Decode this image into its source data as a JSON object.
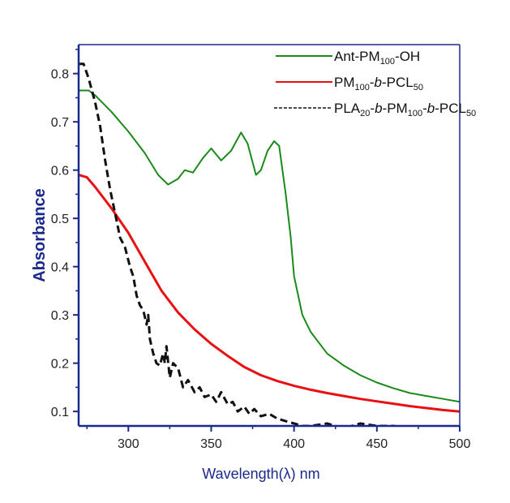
{
  "chart_data": {
    "type": "line",
    "title": "",
    "xlabel": "Wavelength(λ) nm",
    "ylabel": "Absorbance",
    "xlim": [
      270,
      500
    ],
    "ylim": [
      0.07,
      0.86
    ],
    "x_ticks": [
      300,
      350,
      400,
      450,
      500
    ],
    "y_ticks": [
      0.1,
      0.2,
      0.3,
      0.4,
      0.5,
      0.6,
      0.7,
      0.8
    ],
    "x_tick_labels": [
      "300",
      "350",
      "400",
      "450",
      "500"
    ],
    "y_tick_labels": [
      "0.1",
      "0.2",
      "0.3",
      "0.4",
      "0.5",
      "0.6",
      "0.7",
      "0.8"
    ],
    "grid": false,
    "legend_position": "top-right",
    "series": [
      {
        "name": "Ant-PM100-OH",
        "legend_parts": [
          {
            "text": "Ant-PM",
            "sub": false
          },
          {
            "text": "100",
            "sub": true
          },
          {
            "text": "-OH",
            "sub": false
          }
        ],
        "color": "#1a8a1a",
        "style": "solid",
        "x": [
          270,
          276,
          280,
          290,
          300,
          310,
          318,
          324,
          330,
          334,
          339,
          345,
          350,
          356,
          362,
          368,
          372,
          377,
          380,
          384,
          388,
          391,
          395,
          398,
          400,
          405,
          410,
          420,
          430,
          440,
          450,
          460,
          470,
          480,
          490,
          500
        ],
        "y": [
          0.765,
          0.765,
          0.755,
          0.72,
          0.68,
          0.635,
          0.59,
          0.57,
          0.582,
          0.6,
          0.595,
          0.625,
          0.645,
          0.62,
          0.64,
          0.678,
          0.655,
          0.59,
          0.6,
          0.64,
          0.66,
          0.65,
          0.55,
          0.46,
          0.38,
          0.3,
          0.265,
          0.22,
          0.195,
          0.175,
          0.16,
          0.148,
          0.138,
          0.132,
          0.126,
          0.12
        ]
      },
      {
        "name": "PM100-b-PCL50",
        "legend_parts": [
          {
            "text": "PM",
            "sub": false
          },
          {
            "text": "100",
            "sub": true
          },
          {
            "text": "-",
            "sub": false
          },
          {
            "text": "b",
            "sub": false,
            "italic": true
          },
          {
            "text": "-PCL",
            "sub": false
          },
          {
            "text": "50",
            "sub": true
          }
        ],
        "color": "#e81010",
        "style": "solid",
        "x": [
          270,
          275,
          280,
          290,
          300,
          310,
          320,
          330,
          340,
          350,
          360,
          370,
          380,
          390,
          400,
          410,
          420,
          430,
          440,
          450,
          460,
          470,
          480,
          490,
          500
        ],
        "y": [
          0.59,
          0.585,
          0.565,
          0.52,
          0.47,
          0.41,
          0.35,
          0.305,
          0.27,
          0.24,
          0.215,
          0.192,
          0.175,
          0.163,
          0.153,
          0.145,
          0.138,
          0.132,
          0.126,
          0.121,
          0.116,
          0.111,
          0.107,
          0.103,
          0.1
        ]
      },
      {
        "name": "PLA20-b-PM100-b-PCL50",
        "legend_parts": [
          {
            "text": "PLA",
            "sub": false
          },
          {
            "text": "20",
            "sub": true
          },
          {
            "text": "-",
            "sub": false
          },
          {
            "text": "b",
            "sub": false,
            "italic": true
          },
          {
            "text": "-PM",
            "sub": false
          },
          {
            "text": "100",
            "sub": true
          },
          {
            "text": "-",
            "sub": false
          },
          {
            "text": "b",
            "sub": false,
            "italic": true
          },
          {
            "text": "-PCL",
            "sub": false
          },
          {
            "text": "50",
            "sub": true
          }
        ],
        "color": "#111111",
        "style": "dashed",
        "x": [
          270,
          273,
          276,
          280,
          283,
          286,
          289,
          292,
          295,
          298,
          301,
          303,
          305,
          307,
          309,
          311,
          312,
          313,
          315,
          317,
          319,
          321,
          322,
          323,
          325,
          327,
          330,
          333,
          336,
          340,
          343,
          346,
          350,
          353,
          356,
          360,
          363,
          366,
          370,
          373,
          376,
          380,
          385,
          390,
          395,
          400,
          405,
          410,
          420,
          430,
          440,
          450,
          460,
          470,
          475,
          480,
          490,
          500
        ],
        "y": [
          0.82,
          0.82,
          0.79,
          0.74,
          0.69,
          0.62,
          0.56,
          0.51,
          0.46,
          0.44,
          0.4,
          0.38,
          0.34,
          0.32,
          0.31,
          0.28,
          0.3,
          0.25,
          0.22,
          0.2,
          0.195,
          0.22,
          0.2,
          0.235,
          0.17,
          0.2,
          0.19,
          0.15,
          0.165,
          0.14,
          0.15,
          0.13,
          0.135,
          0.12,
          0.14,
          0.115,
          0.12,
          0.1,
          0.11,
          0.095,
          0.105,
          0.09,
          0.095,
          0.085,
          0.08,
          0.075,
          0.07,
          0.07,
          0.075,
          0.065,
          0.075,
          0.07,
          0.07,
          0.065,
          0.06,
          0.065,
          0.062,
          0.062
        ]
      }
    ]
  }
}
